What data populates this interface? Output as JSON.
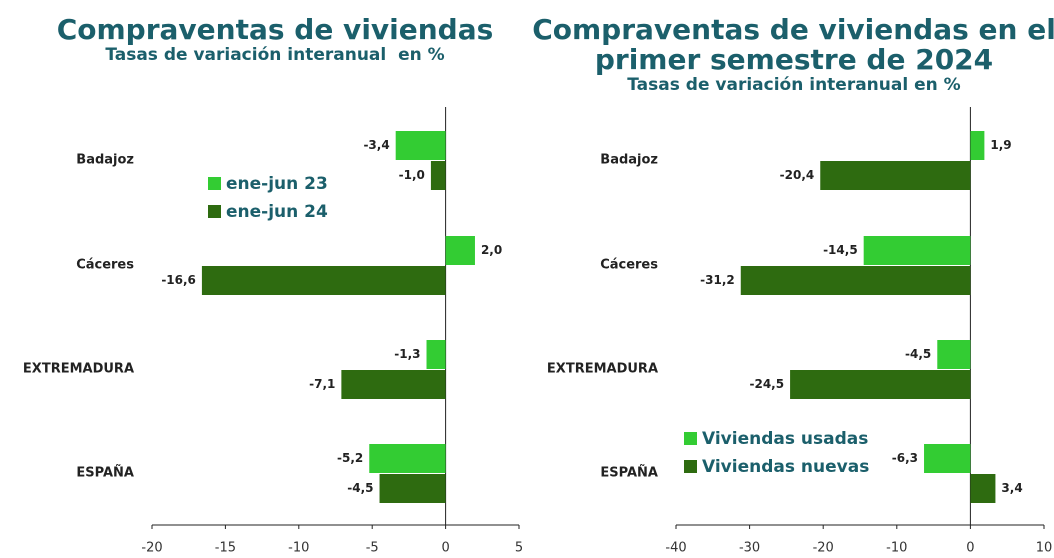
{
  "chart_data": [
    {
      "type": "hbar",
      "title": "Compraventas de viviendas",
      "subtitle": "Tasas de variación interanual  en %",
      "categories": [
        "Badajoz",
        "Cáceres",
        "EXTREMADURA",
        "ESPAÑA"
      ],
      "series": [
        {
          "name": "ene-jun 23",
          "color": "#33cc33",
          "values": [
            -3.4,
            2.0,
            -1.3,
            -5.2
          ],
          "value_labels": [
            "-3,4",
            "2,0",
            "-1,3",
            "-5,2"
          ]
        },
        {
          "name": "ene-jun 24",
          "color": "#2e6b10",
          "values": [
            -1.0,
            -16.6,
            -7.1,
            -4.5
          ],
          "value_labels": [
            "-1,0",
            "-16,6",
            "-7,1",
            "-4,5"
          ]
        }
      ],
      "xlim": [
        -20,
        5
      ],
      "xticks": [
        -20,
        -15,
        -10,
        -5,
        0,
        5
      ]
    },
    {
      "type": "hbar",
      "title": "Compraventas de viviendas en el primer semestre de 2024",
      "subtitle": "Tasas de variación interanual en %",
      "categories": [
        "Badajoz",
        "Cáceres",
        "EXTREMADURA",
        "ESPAÑA"
      ],
      "series": [
        {
          "name": "Viviendas usadas",
          "color": "#33cc33",
          "values": [
            1.9,
            -14.5,
            -4.5,
            -6.3
          ],
          "value_labels": [
            "1,9",
            "-14,5",
            "-4,5",
            "-6,3"
          ]
        },
        {
          "name": "Viviendas nuevas",
          "color": "#2e6b10",
          "values": [
            -20.4,
            -31.2,
            -24.5,
            3.4
          ],
          "value_labels": [
            "-20,4",
            "-31,2",
            "-24,5",
            "3,4"
          ]
        }
      ],
      "xlim": [
        -40,
        10
      ],
      "xticks": [
        -40,
        -30,
        -20,
        -10,
        0,
        10
      ]
    }
  ]
}
